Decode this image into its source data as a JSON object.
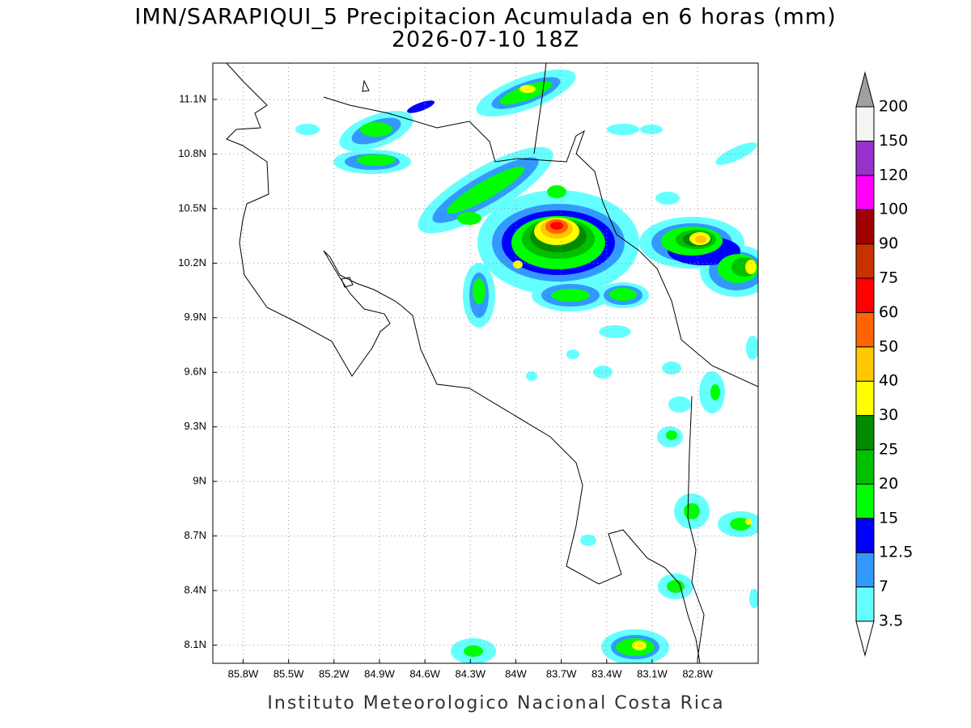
{
  "header": {
    "title": "IMN/SARAPIQUI_5 Precipitacion Acumulada en 6 horas (mm)",
    "subtitle": "2026-07-10 18Z"
  },
  "map": {
    "xlim": [
      -86.0,
      -82.4
    ],
    "ylim": [
      8.0,
      11.3
    ],
    "xticks": [
      {
        "value": -85.8,
        "label": "85.8W"
      },
      {
        "value": -85.5,
        "label": "85.5W"
      },
      {
        "value": -85.2,
        "label": "85.2W"
      },
      {
        "value": -84.9,
        "label": "84.9W"
      },
      {
        "value": -84.6,
        "label": "84.6W"
      },
      {
        "value": -84.3,
        "label": "84.3W"
      },
      {
        "value": -84.0,
        "label": "84W"
      },
      {
        "value": -83.7,
        "label": "83.7W"
      },
      {
        "value": -83.4,
        "label": "83.4W"
      },
      {
        "value": -83.1,
        "label": "83.1W"
      },
      {
        "value": -82.8,
        "label": "82.8W"
      }
    ],
    "yticks": [
      {
        "value": 8.1,
        "label": "8.1N"
      },
      {
        "value": 8.4,
        "label": "8.4N"
      },
      {
        "value": 8.7,
        "label": "8.7N"
      },
      {
        "value": 9.0,
        "label": "9N"
      },
      {
        "value": 9.3,
        "label": "9.3N"
      },
      {
        "value": 9.6,
        "label": "9.6N"
      },
      {
        "value": 9.9,
        "label": "9.9N"
      },
      {
        "value": 10.2,
        "label": "10.2N"
      },
      {
        "value": 10.5,
        "label": "10.5N"
      },
      {
        "value": 10.8,
        "label": "10.8N"
      },
      {
        "value": 11.1,
        "label": "11.1N"
      }
    ]
  },
  "colorbar": {
    "levels": [
      3.5,
      7,
      12.5,
      15,
      20,
      25,
      30,
      40,
      50,
      60,
      75,
      90,
      100,
      120,
      150,
      200
    ],
    "colors": [
      "#ffffff",
      "#66ffff",
      "#3399ff",
      "#0000ff",
      "#00ff00",
      "#00c000",
      "#008c00",
      "#ffff00",
      "#ffc800",
      "#ff6400",
      "#ff0000",
      "#c83200",
      "#a00000",
      "#ff00ff",
      "#9932cc",
      "#f5f5f5",
      "#a0a0a0"
    ]
  },
  "footer": {
    "credit": "Instituto Meteorologico Nacional Costa Rica"
  }
}
